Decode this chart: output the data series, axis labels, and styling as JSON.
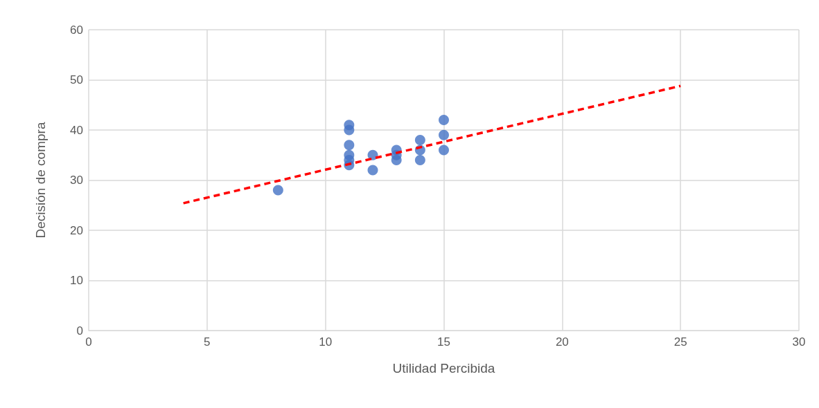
{
  "chart_data": {
    "type": "scatter",
    "xlabel": "Utilidad Percibida",
    "ylabel": "Decisión de compra",
    "xlim": [
      0,
      30
    ],
    "xticks": [
      0,
      5,
      10,
      15,
      20,
      25,
      30
    ],
    "ylim": [
      0,
      60
    ],
    "yticks": [
      0,
      10,
      20,
      30,
      40,
      50,
      60
    ],
    "grid": true,
    "marker": "circle",
    "series": [
      {
        "color": "#4472c4",
        "x": [
          8,
          11,
          11,
          11,
          11,
          11,
          11,
          12,
          12,
          13,
          13,
          13,
          14,
          14,
          14,
          15,
          15,
          15
        ],
        "values": [
          28,
          41,
          40,
          37,
          35,
          34,
          33,
          35,
          32,
          36,
          35,
          34,
          38,
          36,
          34,
          42,
          39,
          36
        ]
      },
      {
        "type": "line",
        "color": "#ff0000",
        "line_style": "dashed",
        "marker": "none",
        "x": [
          4,
          25
        ],
        "values": [
          25.4,
          48.8
        ]
      }
    ]
  }
}
